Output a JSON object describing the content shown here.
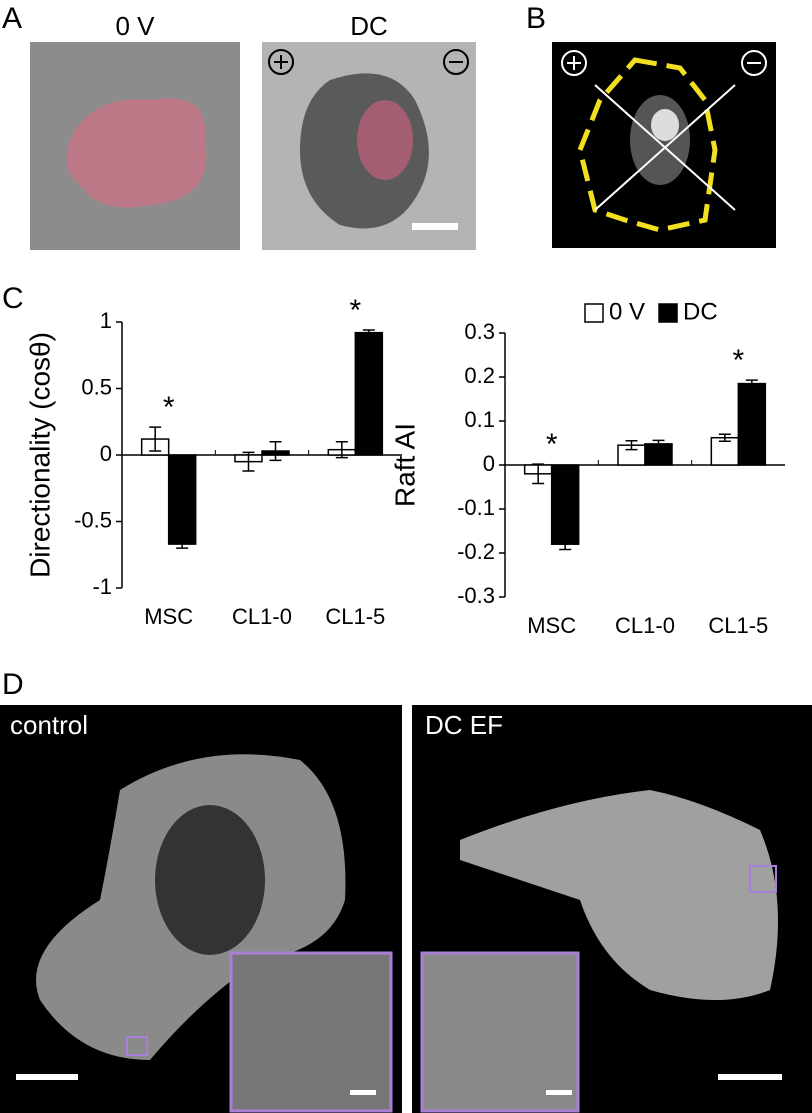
{
  "panel_labels": [
    "A",
    "B",
    "C",
    "D"
  ],
  "image_labels": {
    "a_left": "0 V",
    "a_right": "DC",
    "d_left": "control",
    "d_right": "DC EF"
  },
  "chart_data": [
    {
      "type": "bar",
      "ylabel": "Directionality (cosθ)",
      "categories": [
        "MSC",
        "CL1-0",
        "CL1-5"
      ],
      "series": [
        {
          "name": "0 V",
          "color": "#ffffff",
          "values": [
            0.12,
            -0.05,
            0.04
          ],
          "errors": [
            0.09,
            0.07,
            0.06
          ]
        },
        {
          "name": "DC",
          "color": "#000000",
          "values": [
            -0.67,
            0.03,
            0.92
          ],
          "errors": [
            0.03,
            0.07,
            0.02
          ]
        }
      ],
      "ylim": [
        -1,
        1
      ],
      "yticks": [
        -1,
        -0.5,
        0,
        0.5,
        1
      ],
      "annotations": [
        {
          "text": "*",
          "category": "MSC"
        },
        {
          "text": "*",
          "category": "CL1-5"
        }
      ]
    },
    {
      "type": "bar",
      "ylabel": "Raft AI",
      "categories": [
        "MSC",
        "CL1-0",
        "CL1-5"
      ],
      "series": [
        {
          "name": "0 V",
          "color": "#ffffff",
          "values": [
            -0.02,
            0.045,
            0.062
          ],
          "errors": [
            0.022,
            0.01,
            0.008
          ]
        },
        {
          "name": "DC",
          "color": "#000000",
          "values": [
            -0.18,
            0.048,
            0.185
          ],
          "errors": [
            0.012,
            0.008,
            0.008
          ]
        }
      ],
      "ylim": [
        -0.3,
        0.3
      ],
      "yticks": [
        -0.3,
        -0.2,
        -0.1,
        0,
        0.1,
        0.2,
        0.3
      ],
      "legend": "upper right",
      "annotations": [
        {
          "text": "*",
          "category": "MSC"
        },
        {
          "text": "*",
          "category": "CL1-5"
        }
      ]
    }
  ]
}
